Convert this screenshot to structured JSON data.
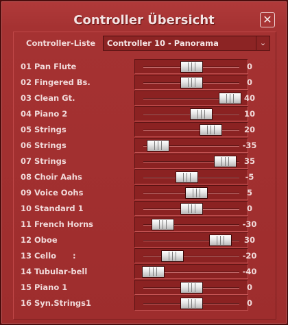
{
  "window": {
    "title": "Controller Übersicht",
    "close_glyph": "✕"
  },
  "controller_list": {
    "label": "Controller-Liste",
    "selected": "Controller 10 - Panorama",
    "arrow_glyph": "⌄"
  },
  "rows": [
    {
      "name": "01 Pan Flute",
      "value": "0",
      "pan": 0
    },
    {
      "name": "02 Fingered Bs.",
      "value": "0",
      "pan": 0
    },
    {
      "name": "03 Clean Gt.",
      "value": "40",
      "pan": 40
    },
    {
      "name": "04 Piano 2",
      "value": "10",
      "pan": 10
    },
    {
      "name": "05 Strings",
      "value": "20",
      "pan": 20
    },
    {
      "name": "06 Strings",
      "value": "-35",
      "pan": -35
    },
    {
      "name": "07 Strings",
      "value": "35",
      "pan": 35
    },
    {
      "name": "08 Choir Aahs",
      "value": "-5",
      "pan": -5
    },
    {
      "name": "09 Voice Oohs",
      "value": "5",
      "pan": 5
    },
    {
      "name": "10 Standard 1",
      "value": "0",
      "pan": 0
    },
    {
      "name": "11 French Horns",
      "value": "-30",
      "pan": -30
    },
    {
      "name": "12 Oboe",
      "value": "30",
      "pan": 30
    },
    {
      "name": "13 Cello      :",
      "value": "-20",
      "pan": -20
    },
    {
      "name": "14 Tubular-bell",
      "value": "-40",
      "pan": -40
    },
    {
      "name": "15 Piano 1",
      "value": "0",
      "pan": 0
    },
    {
      "name": "16 Syn.Strings1",
      "value": "0",
      "pan": 0
    }
  ]
}
